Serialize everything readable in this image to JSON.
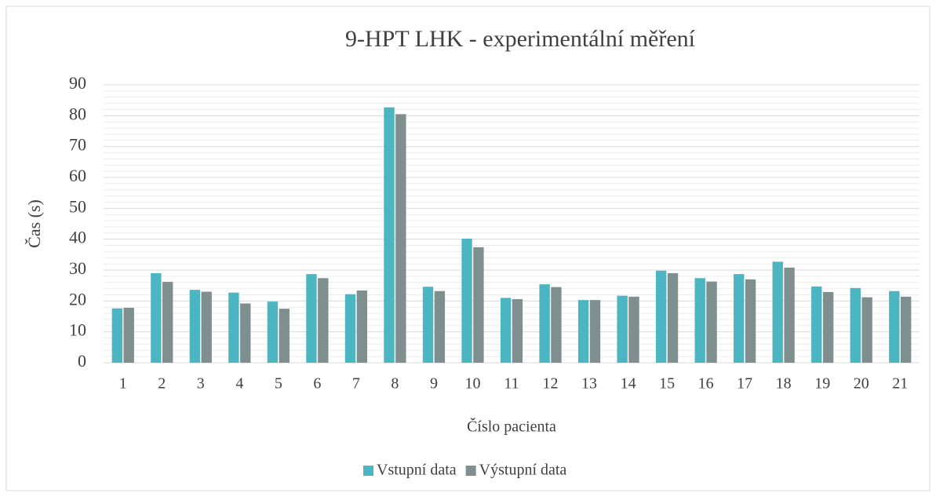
{
  "chart_data": {
    "type": "bar",
    "title": "9-HPT LHK - experimentální měření",
    "x_label": "Číslo pacienta",
    "y_label": "Čas (s)",
    "categories": [
      "1",
      "2",
      "3",
      "4",
      "5",
      "6",
      "7",
      "8",
      "9",
      "10",
      "11",
      "12",
      "13",
      "14",
      "15",
      "16",
      "17",
      "18",
      "19",
      "20",
      "21"
    ],
    "series": [
      {
        "name": "Vstupní data",
        "color": "#4bb5c1",
        "values": [
          17.6,
          29,
          23.6,
          22.7,
          19.8,
          28.7,
          22.2,
          82.7,
          24.6,
          40.2,
          21,
          25.4,
          20.3,
          21.7,
          29.8,
          27.4,
          28.7,
          32.7,
          24.7,
          24.2,
          23.2
        ]
      },
      {
        "name": "Výstupní data",
        "color": "#7f8f8f",
        "values": [
          17.8,
          26.2,
          23,
          19.2,
          17.5,
          27.4,
          23.4,
          80.5,
          23.2,
          37.4,
          20.6,
          24.5,
          20.3,
          21.4,
          29,
          26.3,
          27,
          30.8,
          22.9,
          21.2,
          21.4
        ]
      }
    ],
    "ylim": [
      0,
      90
    ],
    "yticks": [
      0,
      10,
      20,
      30,
      40,
      50,
      60,
      70,
      80,
      90
    ],
    "grid": true,
    "minor_grid": true,
    "legend": "bottom"
  }
}
